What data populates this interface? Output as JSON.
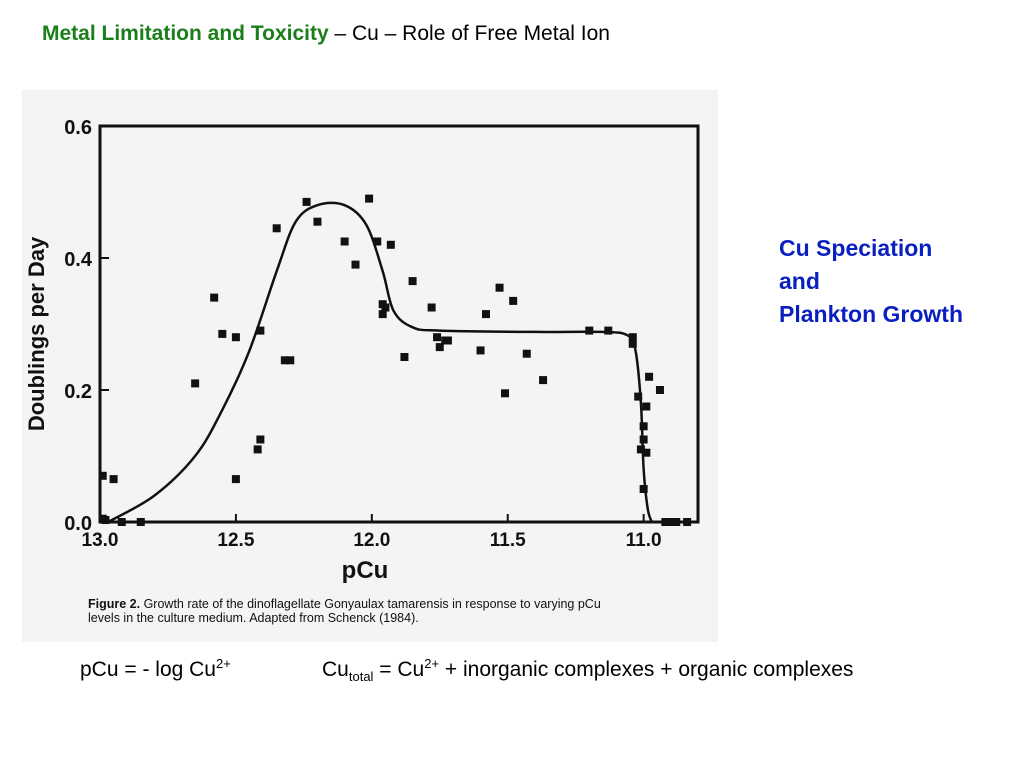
{
  "title": {
    "bold_part": "Metal Limitation and Toxicity",
    "rest": " – Cu – Role of Free Metal Ion"
  },
  "side_note": {
    "lines": [
      "Cu Speciation",
      "and",
      "Plankton Growth"
    ],
    "color": "#0a1fc0"
  },
  "formulas": {
    "pcu_def": {
      "prefix": "pCu = - log Cu",
      "sup": "2+"
    },
    "cu_total": {
      "prefix": "Cu",
      "sub": "total",
      "mid": " = Cu",
      "sup": "2+",
      "suffix": " + inorganic complexes + organic complexes"
    }
  },
  "figure_caption": {
    "label": "Figure 2.",
    "line1": "Growth rate of the dinoflagellate Gonyaulax tamarensis in response to varying pCu",
    "line2": "levels in the culture medium. Adapted from Schenck (1984)."
  },
  "chart_data": {
    "type": "scatter",
    "xlabel": "pCu",
    "ylabel": "Doublings per Day",
    "xlim": [
      13.0,
      10.8
    ],
    "x_reversed": true,
    "ylim": [
      0.0,
      0.6
    ],
    "x_ticks": [
      13.0,
      12.5,
      12.0,
      11.5,
      11.0
    ],
    "x_tick_labels": [
      "13.0",
      "12.5",
      "12.0",
      "11.5",
      "11.0"
    ],
    "y_ticks": [
      0.0,
      0.2,
      0.4,
      0.6
    ],
    "y_tick_labels": [
      "0.0",
      "0.2",
      "0.4",
      "0.6"
    ],
    "grid": false,
    "points": [
      [
        12.99,
        0.07
      ],
      [
        12.95,
        0.065
      ],
      [
        12.99,
        0.005
      ],
      [
        12.98,
        0.003
      ],
      [
        12.92,
        0.0
      ],
      [
        12.85,
        0.0
      ],
      [
        12.65,
        0.21
      ],
      [
        12.58,
        0.34
      ],
      [
        12.55,
        0.285
      ],
      [
        12.5,
        0.28
      ],
      [
        12.5,
        0.065
      ],
      [
        12.42,
        0.11
      ],
      [
        12.41,
        0.125
      ],
      [
        12.41,
        0.29
      ],
      [
        12.35,
        0.445
      ],
      [
        12.32,
        0.245
      ],
      [
        12.3,
        0.245
      ],
      [
        12.24,
        0.485
      ],
      [
        12.2,
        0.455
      ],
      [
        12.1,
        0.425
      ],
      [
        12.06,
        0.39
      ],
      [
        12.01,
        0.49
      ],
      [
        11.98,
        0.425
      ],
      [
        11.96,
        0.33
      ],
      [
        11.96,
        0.315
      ],
      [
        11.95,
        0.325
      ],
      [
        11.93,
        0.42
      ],
      [
        11.88,
        0.25
      ],
      [
        11.85,
        0.365
      ],
      [
        11.78,
        0.325
      ],
      [
        11.76,
        0.28
      ],
      [
        11.75,
        0.265
      ],
      [
        11.73,
        0.275
      ],
      [
        11.72,
        0.275
      ],
      [
        11.6,
        0.26
      ],
      [
        11.58,
        0.315
      ],
      [
        11.53,
        0.355
      ],
      [
        11.51,
        0.195
      ],
      [
        11.48,
        0.335
      ],
      [
        11.43,
        0.255
      ],
      [
        11.37,
        0.215
      ],
      [
        11.2,
        0.29
      ],
      [
        11.13,
        0.29
      ],
      [
        11.04,
        0.28
      ],
      [
        11.04,
        0.27
      ],
      [
        11.02,
        0.19
      ],
      [
        11.01,
        0.11
      ],
      [
        11.0,
        0.125
      ],
      [
        11.0,
        0.145
      ],
      [
        10.99,
        0.105
      ],
      [
        11.0,
        0.05
      ],
      [
        10.99,
        0.175
      ],
      [
        10.98,
        0.22
      ],
      [
        10.94,
        0.2
      ],
      [
        10.92,
        0.0
      ],
      [
        10.9,
        0.0
      ],
      [
        10.88,
        0.0
      ],
      [
        10.84,
        0.0
      ]
    ],
    "fit_curve": [
      [
        12.97,
        0.0
      ],
      [
        12.8,
        0.04
      ],
      [
        12.65,
        0.1
      ],
      [
        12.55,
        0.17
      ],
      [
        12.45,
        0.26
      ],
      [
        12.35,
        0.38
      ],
      [
        12.28,
        0.455
      ],
      [
        12.2,
        0.48
      ],
      [
        12.1,
        0.48
      ],
      [
        12.02,
        0.45
      ],
      [
        11.96,
        0.38
      ],
      [
        11.92,
        0.32
      ],
      [
        11.85,
        0.295
      ],
      [
        11.75,
        0.29
      ],
      [
        11.4,
        0.288
      ],
      [
        11.15,
        0.288
      ],
      [
        11.06,
        0.283
      ],
      [
        11.03,
        0.26
      ],
      [
        11.01,
        0.18
      ],
      [
        11.0,
        0.08
      ],
      [
        10.985,
        0.02
      ],
      [
        10.97,
        0.0
      ]
    ]
  }
}
